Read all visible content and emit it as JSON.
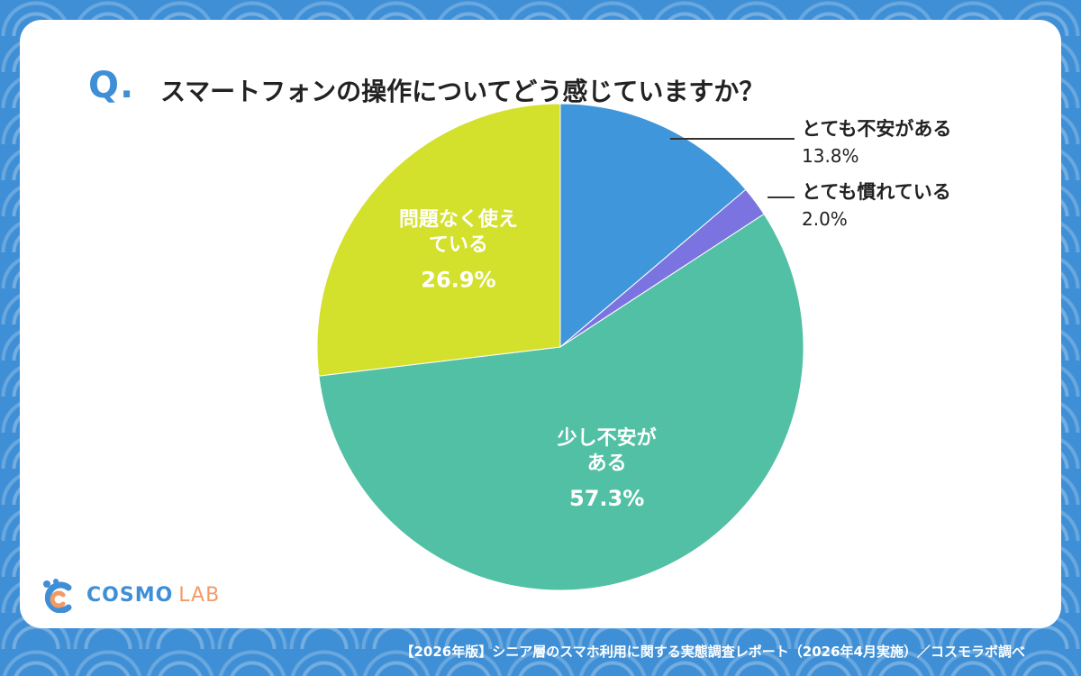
{
  "header": {
    "q_mark": "Q.",
    "question": "スマートフォンの操作についてどう感じていますか？"
  },
  "chart_data": {
    "type": "pie",
    "start_angle_deg": 0,
    "direction": "clockwise",
    "slices": [
      {
        "label": "とても不安がある",
        "value": 13.8,
        "value_label": "13.8%",
        "color": "#3f96da",
        "label_position": "outside"
      },
      {
        "label": "とても慣れている",
        "value": 2.0,
        "value_label": "2.0%",
        "color": "#7b74e0",
        "label_position": "outside"
      },
      {
        "label": "少し不安がある",
        "value": 57.3,
        "value_label": "57.3%",
        "color": "#52c0a4",
        "label_position": "inside"
      },
      {
        "label": "問題なく使えている",
        "value": 26.9,
        "value_label": "26.9%",
        "color": "#d3e02c",
        "label_position": "inside"
      }
    ]
  },
  "brand": {
    "logo_word1": "COSMO",
    "logo_word2": "LAB",
    "colors": {
      "blue": "#3f8fd6",
      "orange": "#f29b67"
    }
  },
  "footer": {
    "source": "【2026年版】シニア層のスマホ利用に関する実態調査レポート（2026年4月実施）／コスモラボ調べ"
  }
}
